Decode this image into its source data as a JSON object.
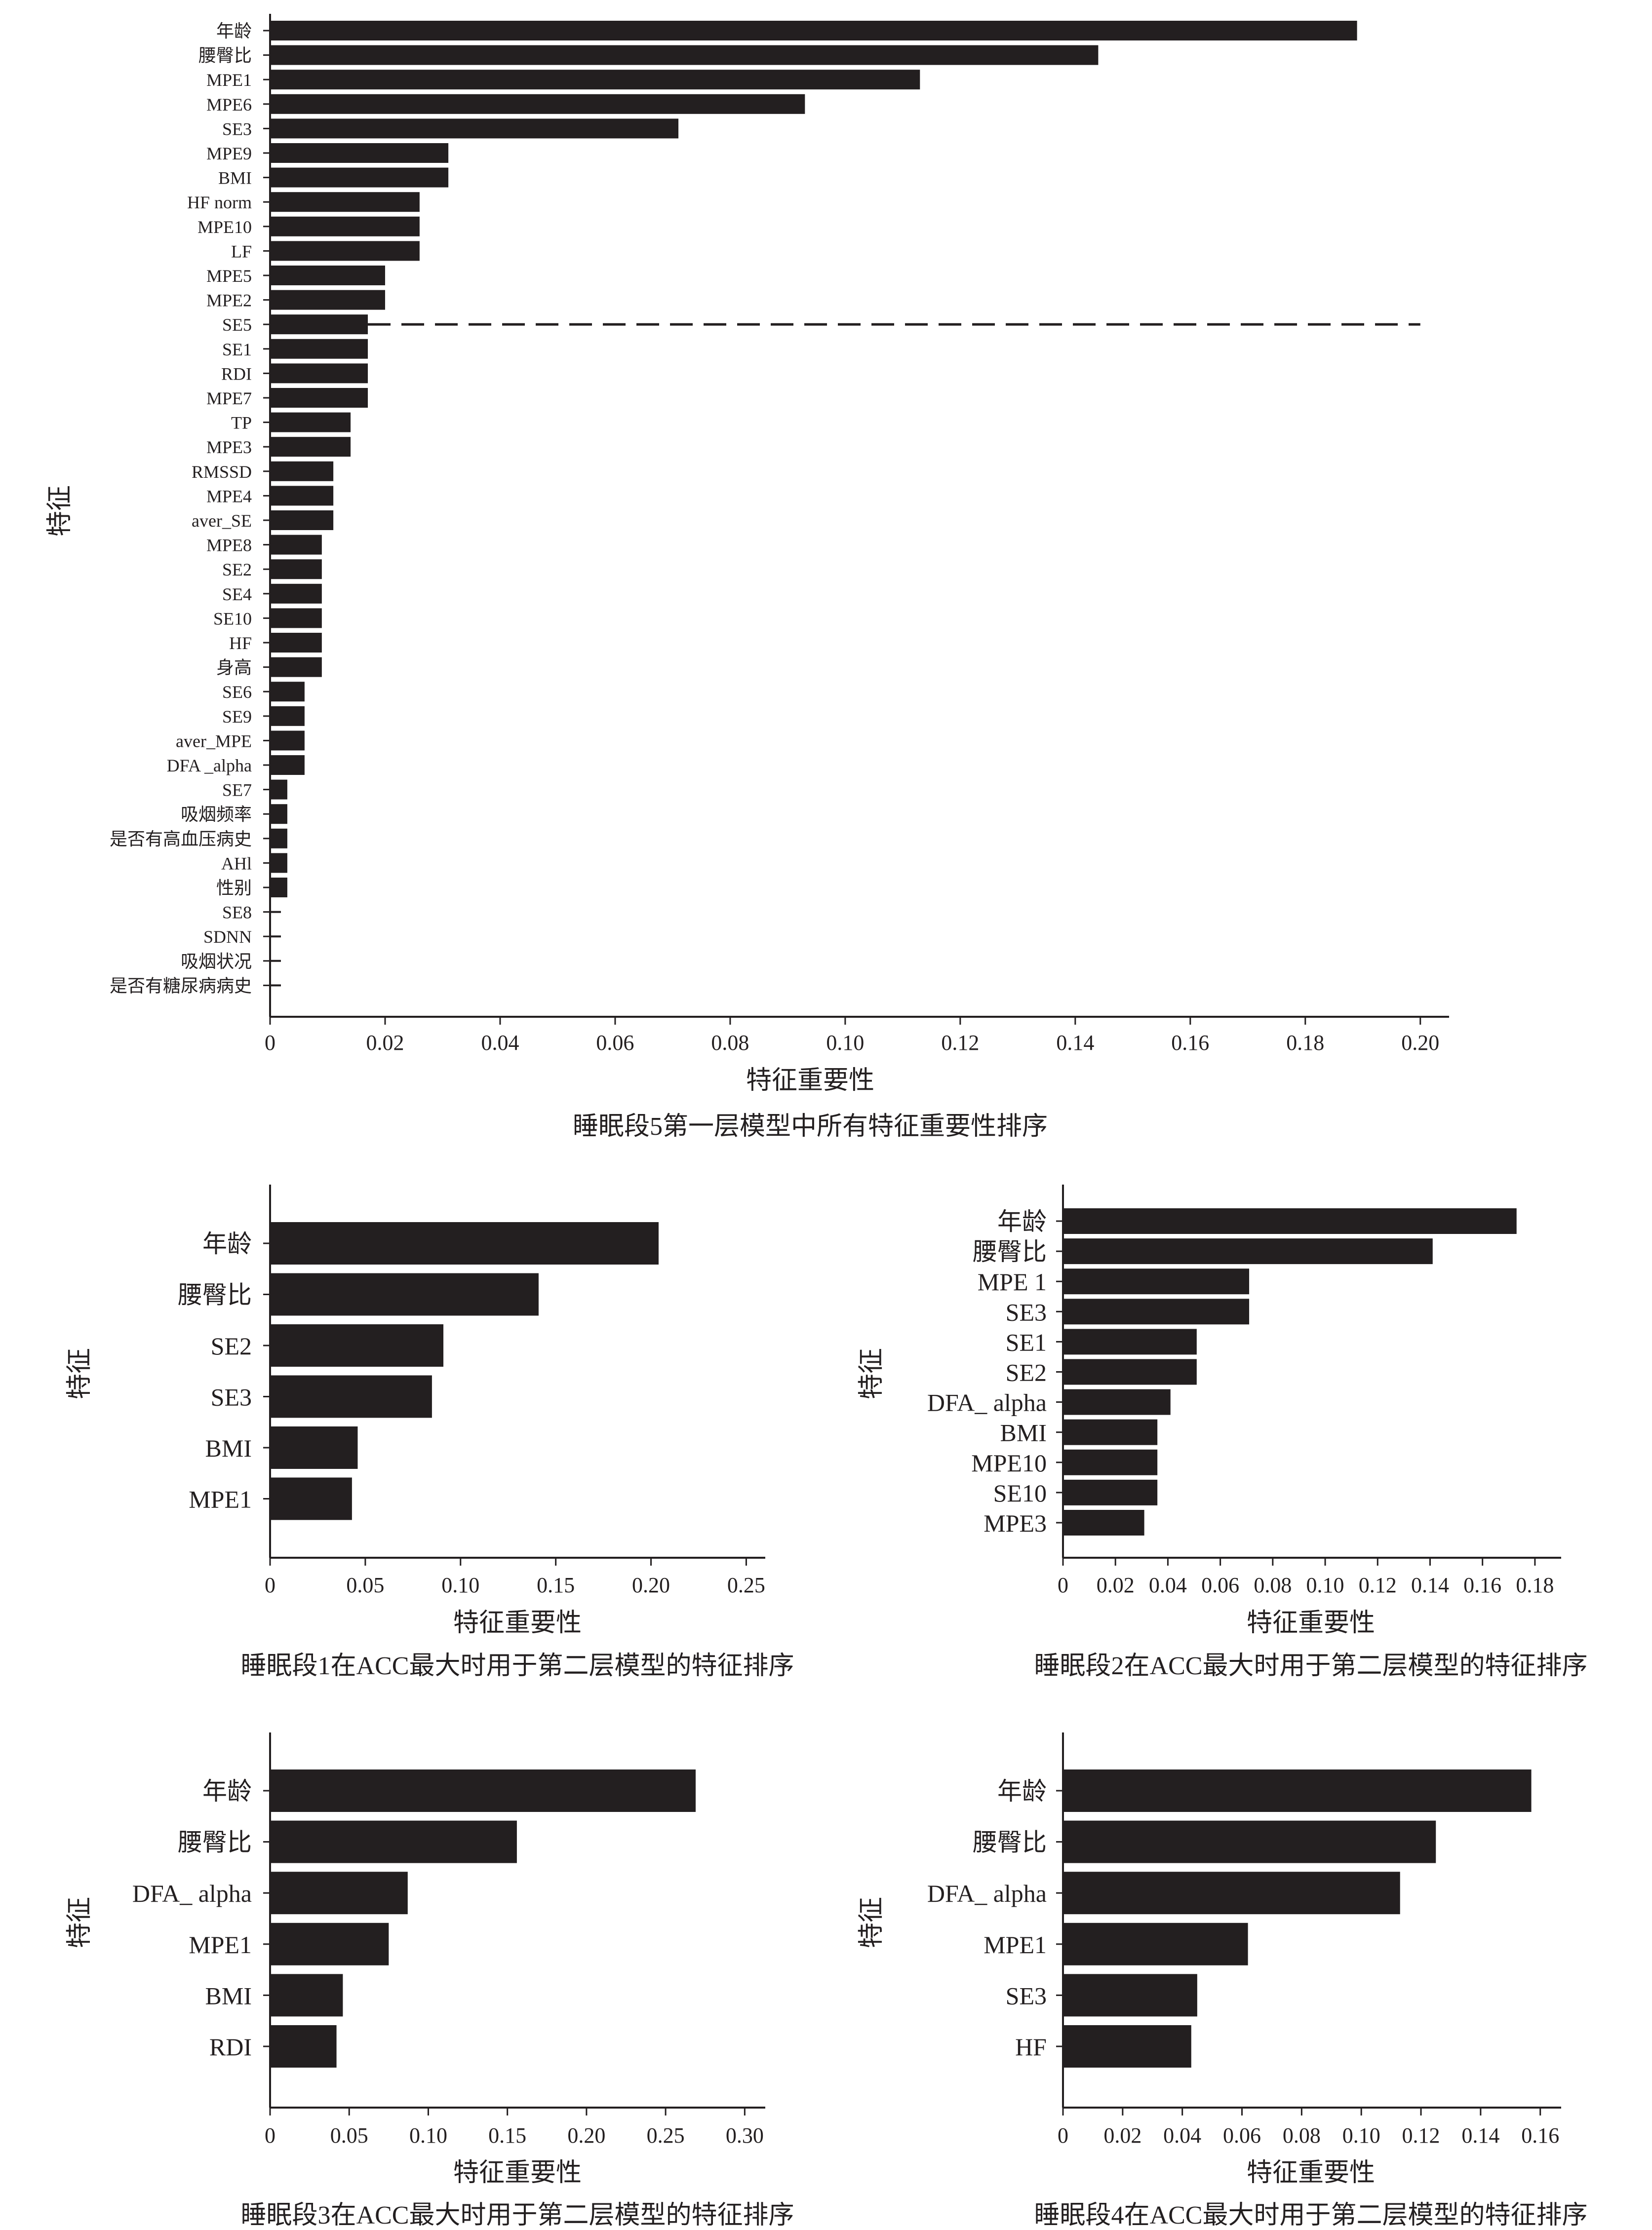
{
  "chart_data": [
    {
      "type": "bar",
      "orientation": "horizontal",
      "caption": "睡眠段5第一层模型中所有特征重要性排序",
      "xlabel": "特征重要性",
      "ylabel": "特征",
      "xlim": [
        0,
        0.205
      ],
      "xticks": [
        "0",
        "0.02",
        "0.04",
        "0.06",
        "0.08",
        "0.10",
        "0.12",
        "0.14",
        "0.16",
        "0.18",
        "0.20"
      ],
      "categories": [
        "年龄",
        "腰臀比",
        "MPE1",
        "MPE6",
        "SE3",
        "MPE9",
        "BMI",
        "HF norm",
        "MPE10",
        "LF",
        "MPE5",
        "MPE2",
        "SE5",
        "SE1",
        "RDI",
        "MPE7",
        "TP",
        "MPE3",
        "RMSSD",
        "MPE4",
        "aver_SE",
        "MPE8",
        "SE2",
        "SE4",
        "SE10",
        "HF",
        "身高",
        "SE6",
        "SE9",
        "aver_MPE",
        "DFA _alpha",
        "SE7",
        "吸烟频率",
        "是否有高血压病史",
        "AHl",
        "性别",
        "SE8",
        "SDNN",
        "吸烟状况",
        "是否有糖尿病病史"
      ],
      "values": [
        0.189,
        0.144,
        0.113,
        0.093,
        0.071,
        0.031,
        0.031,
        0.026,
        0.026,
        0.026,
        0.02,
        0.02,
        0.017,
        0.017,
        0.017,
        0.017,
        0.014,
        0.014,
        0.011,
        0.011,
        0.011,
        0.009,
        0.009,
        0.009,
        0.009,
        0.009,
        0.009,
        0.006,
        0.006,
        0.006,
        0.006,
        0.003,
        0.003,
        0.003,
        0.003,
        0.003,
        0.0,
        0.0,
        0.0,
        0.0
      ],
      "cutoff_line": {
        "after_category": "SE5",
        "style": "dashed",
        "x_end": 0.2
      }
    },
    {
      "type": "bar",
      "orientation": "horizontal",
      "caption": "睡眠段1在ACC最大时用于第二层模型的特征排序",
      "xlabel": "特征重要性",
      "ylabel": "特征",
      "xlim": [
        0,
        0.26
      ],
      "xticks": [
        "0",
        "0.05",
        "0.10",
        "0.15",
        "0.20",
        "0.25"
      ],
      "categories": [
        "年龄",
        "腰臀比",
        "SE2",
        "SE3",
        "BMI",
        "MPE1"
      ],
      "values": [
        0.204,
        0.141,
        0.091,
        0.085,
        0.046,
        0.043
      ]
    },
    {
      "type": "bar",
      "orientation": "horizontal",
      "caption": "睡眠段2在ACC最大时用于第二层模型的特征排序",
      "xlabel": "特征重要性",
      "ylabel": "特征",
      "xlim": [
        0,
        0.19
      ],
      "xticks": [
        "0",
        "0.02",
        "0.04",
        "0.06",
        "0.08",
        "0.10",
        "0.12",
        "0.14",
        "0.16",
        "0.18"
      ],
      "categories": [
        "年龄",
        "腰臀比",
        "MPE 1",
        "SE3",
        "SE1",
        "SE2",
        "DFA_ alpha",
        "BMI",
        "MPE10",
        "SE10",
        "MPE3"
      ],
      "values": [
        0.173,
        0.141,
        0.071,
        0.071,
        0.051,
        0.051,
        0.041,
        0.036,
        0.036,
        0.036,
        0.031
      ]
    },
    {
      "type": "bar",
      "orientation": "horizontal",
      "caption": "睡眠段3在ACC最大时用于第二层模型的特征排序",
      "xlabel": "特征重要性",
      "ylabel": "特征",
      "xlim": [
        0,
        0.313
      ],
      "xticks": [
        "0",
        "0.05",
        "0.10",
        "0.15",
        "0.20",
        "0.25",
        "0.30"
      ],
      "categories": [
        "年龄",
        "腰臀比",
        "DFA_ alpha",
        "MPE1",
        "BMI",
        "RDI"
      ],
      "values": [
        0.269,
        0.156,
        0.087,
        0.075,
        0.046,
        0.042
      ]
    },
    {
      "type": "bar",
      "orientation": "horizontal",
      "caption": "睡眠段4在ACC最大时用于第二层模型的特征排序",
      "xlabel": "特征重要性",
      "ylabel": "特征",
      "xlim": [
        0,
        0.167
      ],
      "xticks": [
        "0",
        "0.02",
        "0.04",
        "0.06",
        "0.08",
        "0.10",
        "0.12",
        "0.14",
        "0.16"
      ],
      "categories": [
        "年龄",
        "腰臀比",
        "DFA_ alpha",
        "MPE1",
        "SE3",
        "HF"
      ],
      "values": [
        0.157,
        0.125,
        0.113,
        0.062,
        0.045,
        0.043
      ]
    }
  ]
}
